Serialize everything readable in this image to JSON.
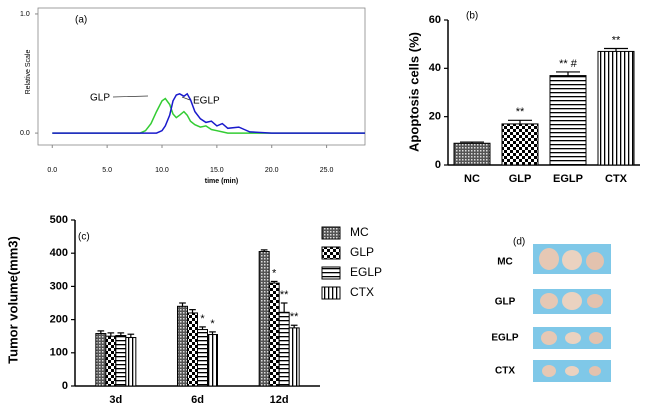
{
  "chart_data": [
    {
      "type": "line",
      "panel_label": "(a)",
      "x_label": "time (min)",
      "y_label": "Relative Scale",
      "x": [
        0,
        8,
        8.5,
        9,
        9.5,
        10,
        10.3,
        10.7,
        11,
        11.3,
        11.6,
        12,
        12.3,
        12.6,
        13,
        13.5,
        14,
        14.5,
        15,
        15.5,
        16,
        17,
        17.5,
        18,
        20,
        28.5
      ],
      "series": [
        {
          "name": "GLP",
          "color": "#33cc33",
          "values": [
            0,
            0,
            0.02,
            0.08,
            0.18,
            0.27,
            0.29,
            0.24,
            0.16,
            0.13,
            0.15,
            0.18,
            0.15,
            0.1,
            0.07,
            0.05,
            0.06,
            0.03,
            0.02,
            0.01,
            0,
            0,
            0,
            0,
            0,
            0
          ]
        },
        {
          "name": "EGLP",
          "color": "#1a1acc",
          "values": [
            0,
            0,
            0,
            0,
            0,
            0.02,
            0.06,
            0.15,
            0.27,
            0.32,
            0.33,
            0.31,
            0.33,
            0.28,
            0.18,
            0.12,
            0.09,
            0.1,
            0.06,
            0.08,
            0.04,
            0.05,
            0.03,
            0.01,
            0,
            0
          ]
        }
      ],
      "xlim": [
        -1.3,
        28.5
      ],
      "xticks": [
        {
          "value": 0,
          "label": "0.0"
        },
        {
          "value": 5,
          "label": "5.0"
        },
        {
          "value": 10,
          "label": "10.0"
        },
        {
          "value": 15,
          "label": "15.0"
        },
        {
          "value": 20,
          "label": "20.0"
        },
        {
          "value": 25,
          "label": "25.0"
        }
      ],
      "ylim": [
        -0.1,
        1.05
      ],
      "yticks": [
        {
          "value": 0,
          "label": "0.0"
        },
        {
          "value": 1,
          "label": "1.0"
        }
      ]
    },
    {
      "type": "bar",
      "panel_label": "(b)",
      "y_label": "Apoptosis cells (%)",
      "categories": [
        "NC",
        "GLP",
        "EGLP",
        "CTX"
      ],
      "values": [
        9,
        17,
        37,
        47
      ],
      "errors": [
        0.5,
        1.5,
        1.5,
        1.2
      ],
      "patterns": [
        "crosshatch",
        "checker",
        "hlines",
        "vlines"
      ],
      "significance": [
        null,
        "**",
        "** #",
        "**"
      ],
      "ylim": [
        0,
        60
      ],
      "yticks": [
        0,
        20,
        40,
        60
      ]
    },
    {
      "type": "bar",
      "panel_label": "(c)",
      "y_label": "Tumor volume(mm3)",
      "categories": [
        "3d",
        "6d",
        "12d"
      ],
      "series": [
        {
          "name": "MC",
          "pattern": "crosshatch",
          "values": [
            158,
            240,
            405
          ],
          "errors": [
            8,
            10,
            5
          ],
          "significance": [
            null,
            null,
            null
          ]
        },
        {
          "name": "GLP",
          "pattern": "checker",
          "values": [
            150,
            220,
            310
          ],
          "errors": [
            10,
            10,
            5
          ],
          "significance": [
            null,
            null,
            "*"
          ]
        },
        {
          "name": "EGLP",
          "pattern": "hlines",
          "values": [
            152,
            170,
            222
          ],
          "errors": [
            8,
            8,
            28
          ],
          "significance": [
            null,
            "*",
            "**"
          ]
        },
        {
          "name": "CTX",
          "pattern": "vlines",
          "values": [
            146,
            155,
            175
          ],
          "errors": [
            10,
            8,
            8
          ],
          "significance": [
            null,
            "*",
            "**"
          ]
        }
      ],
      "ylim": [
        0,
        500
      ],
      "yticks": [
        0,
        100,
        200,
        300,
        400,
        500
      ]
    }
  ],
  "photo_panel": {
    "panel_label": "(d)",
    "rows": [
      "MC",
      "GLP",
      "EGLP",
      "CTX"
    ]
  }
}
